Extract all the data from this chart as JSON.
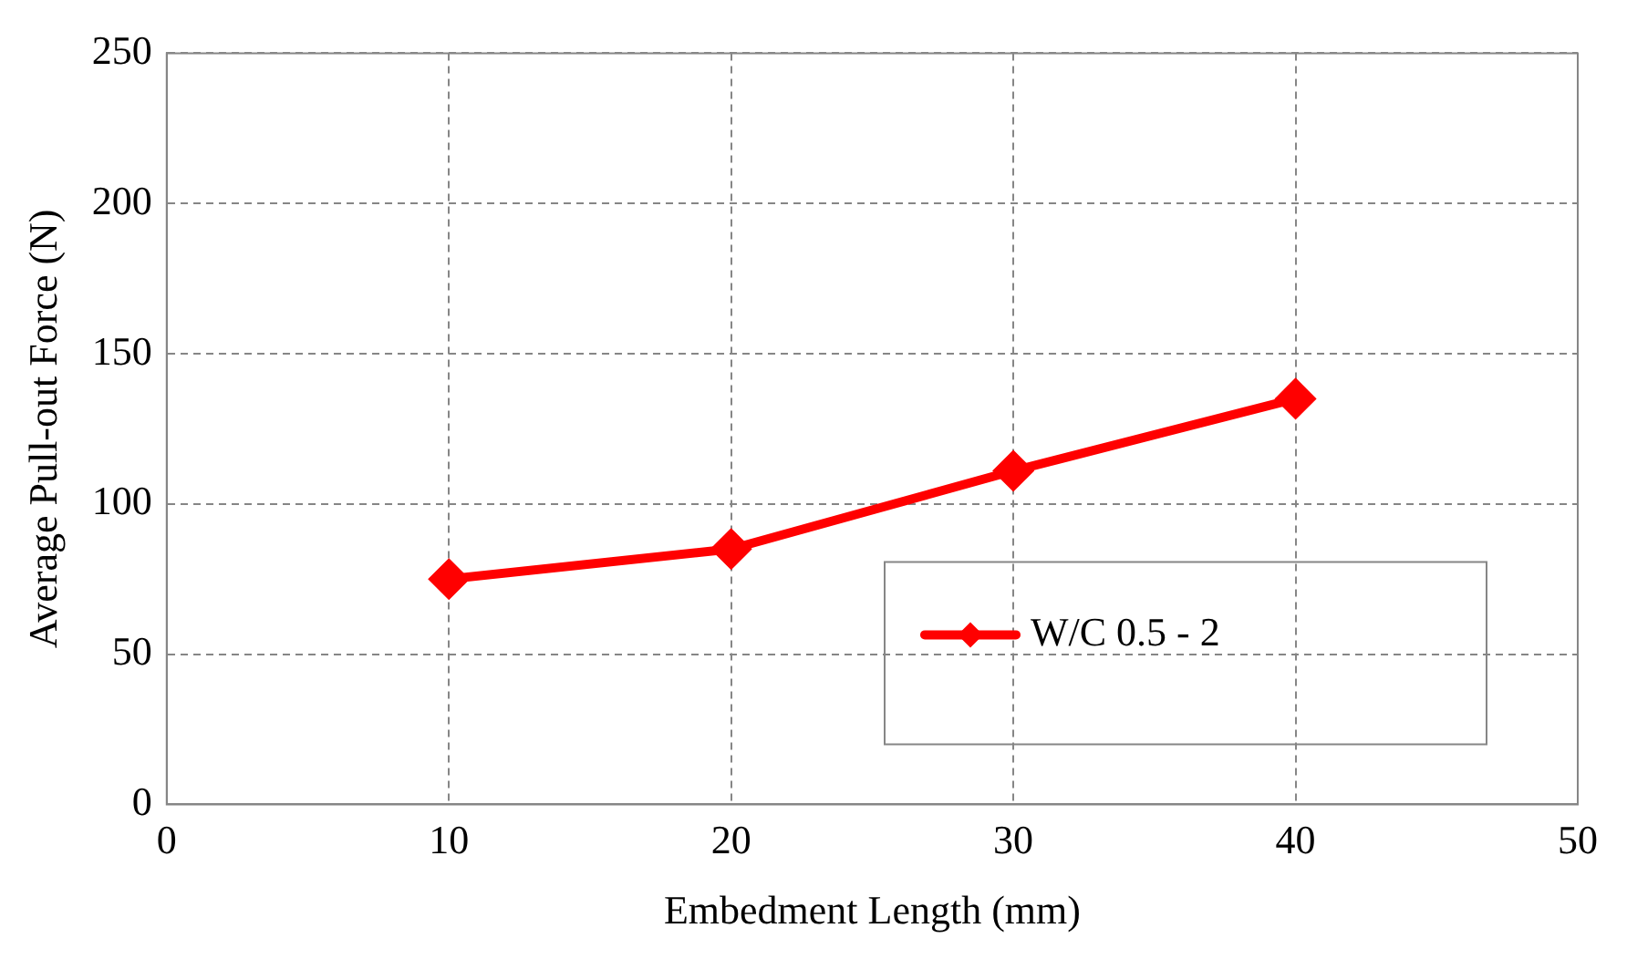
{
  "chart_data": {
    "type": "line",
    "xlabel": "Embedment Length (mm)",
    "ylabel": "Average Pull-out Force (N)",
    "x": [
      10,
      20,
      30,
      40
    ],
    "series": [
      {
        "name": "W/C 0.5 - 2",
        "color": "#ff0000",
        "values": [
          75,
          85,
          111,
          135
        ]
      }
    ],
    "xlim": [
      0,
      50
    ],
    "xticks": [
      0,
      10,
      20,
      30,
      40,
      50
    ],
    "ylim": [
      0,
      250
    ],
    "yticks": [
      0,
      50,
      100,
      150,
      200,
      250
    ],
    "grid": true,
    "legend": "bottom right",
    "marker": "diamond",
    "line_style": "solid"
  }
}
